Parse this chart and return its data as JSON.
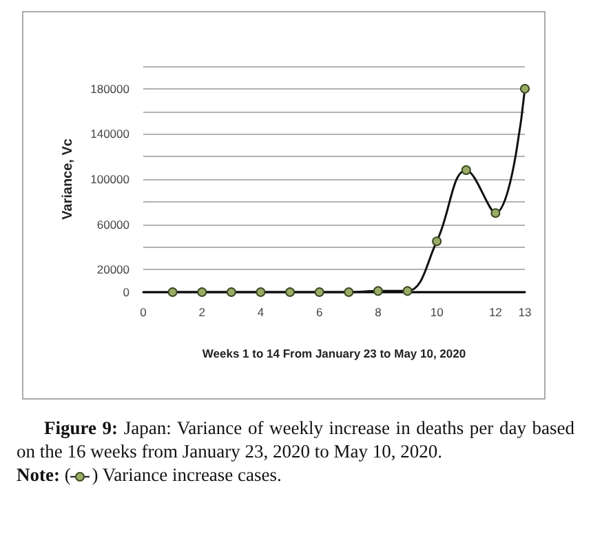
{
  "chart_data": {
    "type": "line",
    "xlabel": "Weeks 1 to 14 From January 23 to May 10, 2020",
    "ylabel": "Variance, Vc",
    "x": [
      1,
      2,
      3,
      4,
      5,
      6,
      7,
      8,
      9,
      10,
      11,
      12,
      13
    ],
    "series": [
      {
        "color": "#9aab66",
        "values": [
          0,
          0,
          0,
          0,
          0,
          0,
          0,
          1000,
          1000,
          45000,
          108000,
          70000,
          180000
        ]
      }
    ],
    "xlim": [
      0,
      13
    ],
    "xticks": [
      0,
      2,
      4,
      6,
      8,
      10,
      12,
      13
    ],
    "ylim": [
      0,
      200000
    ],
    "yticks": [
      0,
      20000,
      {
        "value": 40000,
        "label": null
      },
      60000,
      {
        "value": 80000,
        "label": null
      },
      100000,
      {
        "value": 120000,
        "label": null
      },
      140000,
      {
        "value": 160000,
        "label": null
      },
      180000,
      {
        "value": 200000,
        "label": null
      }
    ],
    "grid": "y",
    "marker": "circle",
    "line_style": "solid",
    "annotations": [
      "Figure 9: Japan: Variance of weekly increase in deaths per day based on the 16 weeks from January 23, 2020 to May 10, 2020.",
      "Note: ( ) Variance increase cases."
    ]
  }
}
